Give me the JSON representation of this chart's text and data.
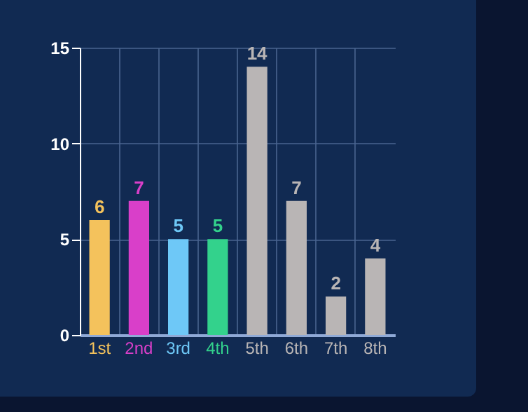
{
  "chart_data": {
    "type": "bar",
    "categories": [
      "1st",
      "2nd",
      "3rd",
      "4th",
      "5th",
      "6th",
      "7th",
      "8th"
    ],
    "values": [
      6,
      7,
      5,
      5,
      14,
      7,
      2,
      4
    ],
    "colors": [
      "#f4c25c",
      "#d93fc9",
      "#6ec8f7",
      "#33d28c",
      "#b9b5b5",
      "#b9b5b5",
      "#b9b5b5",
      "#b9b5b5"
    ],
    "ylim": [
      0,
      15
    ],
    "yticks": [
      0,
      5,
      10,
      15
    ],
    "grid": true,
    "data_labels": true
  }
}
